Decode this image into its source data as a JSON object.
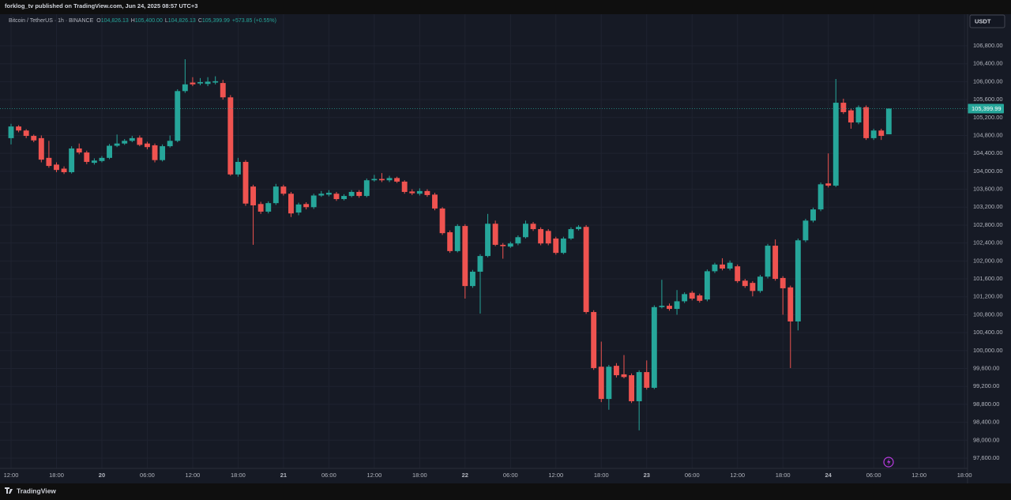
{
  "publish_note": "forklog_tv published on TradingView.com, Jun 24, 2025 08:57 UTC+3",
  "brand": "TradingView",
  "currency_button": "USDT",
  "chart_data": {
    "type": "candlestick",
    "symbol": "Bitcoin / TetherUS · 1h · BINANCE",
    "header_values": [
      {
        "key": "O",
        "value": "104,826.13"
      },
      {
        "key": "H",
        "value": "105,400.00"
      },
      {
        "key": "L",
        "value": "104,826.13"
      },
      {
        "key": "C",
        "value": "105,399.99"
      }
    ],
    "change": "+573.85 (+0.55%)",
    "up_color": "#26a69a",
    "down_color": "#ef5350",
    "grid": true,
    "last_price": {
      "value": 105399.99,
      "label": "105,399.99"
    },
    "xlim": [
      -0.94,
      126.3
    ],
    "ylim": [
      97371,
      107505
    ],
    "xticks": [
      {
        "value": 0,
        "label": "12:00"
      },
      {
        "value": 6,
        "label": "18:00"
      },
      {
        "value": 12,
        "label": "20"
      },
      {
        "value": 18,
        "label": "06:00"
      },
      {
        "value": 24,
        "label": "12:00"
      },
      {
        "value": 30,
        "label": "18:00"
      },
      {
        "value": 36,
        "label": "21"
      },
      {
        "value": 42,
        "label": "06:00"
      },
      {
        "value": 48,
        "label": "12:00"
      },
      {
        "value": 54,
        "label": "18:00"
      },
      {
        "value": 60,
        "label": "22"
      },
      {
        "value": 66,
        "label": "06:00"
      },
      {
        "value": 72,
        "label": "12:00"
      },
      {
        "value": 78,
        "label": "18:00"
      },
      {
        "value": 84,
        "label": "23"
      },
      {
        "value": 90,
        "label": "06:00"
      },
      {
        "value": 96,
        "label": "12:00"
      },
      {
        "value": 102,
        "label": "18:00"
      },
      {
        "value": 108,
        "label": "24"
      },
      {
        "value": 114,
        "label": "06:00"
      },
      {
        "value": 120,
        "label": "12:00"
      },
      {
        "value": 126,
        "label": "18:00"
      }
    ],
    "yticks": [
      {
        "value": 97600,
        "label": "97,600.00"
      },
      {
        "value": 98000,
        "label": "98,000.00"
      },
      {
        "value": 98400,
        "label": "98,400.00"
      },
      {
        "value": 98800,
        "label": "98,800.00"
      },
      {
        "value": 99200,
        "label": "99,200.00"
      },
      {
        "value": 99600,
        "label": "99,600.00"
      },
      {
        "value": 100000,
        "label": "100,000.00"
      },
      {
        "value": 100400,
        "label": "100,400.00"
      },
      {
        "value": 100800,
        "label": "100,800.00"
      },
      {
        "value": 101200,
        "label": "101,200.00"
      },
      {
        "value": 101600,
        "label": "101,600.00"
      },
      {
        "value": 102000,
        "label": "102,000.00"
      },
      {
        "value": 102400,
        "label": "102,400.00"
      },
      {
        "value": 102800,
        "label": "102,800.00"
      },
      {
        "value": 103200,
        "label": "103,200.00"
      },
      {
        "value": 103600,
        "label": "103,600.00"
      },
      {
        "value": 104000,
        "label": "104,000.00"
      },
      {
        "value": 104400,
        "label": "104,400.00"
      },
      {
        "value": 104800,
        "label": "104,800.00"
      },
      {
        "value": 105200,
        "label": "105,200.00"
      },
      {
        "value": 105600,
        "label": "105,600.00"
      },
      {
        "value": 106000,
        "label": "106,000.00"
      },
      {
        "value": 106400,
        "label": "106,400.00"
      },
      {
        "value": 106800,
        "label": "106,800.00"
      }
    ],
    "x": [
      0,
      1,
      2,
      3,
      4,
      5,
      6,
      7,
      8,
      9,
      10,
      11,
      12,
      13,
      14,
      15,
      16,
      17,
      18,
      19,
      20,
      21,
      22,
      23,
      24,
      25,
      26,
      27,
      28,
      29,
      30,
      31,
      32,
      33,
      34,
      35,
      36,
      37,
      38,
      39,
      40,
      41,
      42,
      43,
      44,
      45,
      46,
      47,
      48,
      49,
      50,
      51,
      52,
      53,
      54,
      55,
      56,
      57,
      58,
      59,
      60,
      61,
      62,
      63,
      64,
      65,
      66,
      67,
      68,
      69,
      70,
      71,
      72,
      73,
      74,
      75,
      76,
      77,
      78,
      79,
      80,
      81,
      82,
      83,
      84,
      85,
      86,
      87,
      88,
      89,
      90,
      91,
      92,
      93,
      94,
      95,
      96,
      97,
      98,
      99,
      100,
      101,
      102,
      103,
      104,
      105,
      106,
      107,
      108,
      109,
      110,
      111,
      112,
      113,
      114,
      115,
      116
    ],
    "open": [
      104740,
      105000,
      104910,
      104790,
      104740,
      104300,
      104150,
      104060,
      103980,
      104510,
      104420,
      104190,
      104230,
      104300,
      104570,
      104620,
      104680,
      104750,
      104620,
      104580,
      104250,
      104560,
      104680,
      105790,
      105980,
      105960,
      105950,
      105980,
      105970,
      105650,
      103930,
      104210,
      103660,
      103270,
      103100,
      103290,
      103660,
      103500,
      103080,
      103270,
      103200,
      103460,
      103480,
      103500,
      103380,
      103450,
      103540,
      103450,
      103800,
      103830,
      103800,
      103850,
      103770,
      103550,
      103500,
      103560,
      103480,
      103170,
      102640,
      102220,
      102780,
      101440,
      101760,
      102110,
      102830,
      102360,
      102320,
      102390,
      102530,
      102830,
      102710,
      102670,
      102500,
      102180,
      102500,
      102710,
      102760,
      100860,
      99640,
      98920,
      99660,
      99470,
      99450,
      98870,
      99520,
      99170,
      100970,
      101000,
      100930,
      101100,
      101290,
      101230,
      101140,
      101770,
      101920,
      101830,
      101880,
      101560,
      101510,
      101330,
      101650,
      102340,
      101620,
      101410,
      100650,
      102460,
      102900,
      103150,
      103730,
      103680,
      105530,
      105360,
      105090,
      105430,
      104740,
      104910,
      104826.13
    ],
    "high": [
      105060,
      105030,
      104940,
      104820,
      104800,
      104680,
      104200,
      104110,
      104560,
      104620,
      104460,
      104290,
      104340,
      104610,
      104820,
      104720,
      104790,
      104800,
      104660,
      104620,
      104600,
      104800,
      105830,
      106500,
      106100,
      106080,
      106100,
      106120,
      106040,
      105700,
      104300,
      104250,
      103700,
      103320,
      103330,
      103720,
      103700,
      103540,
      103300,
      103310,
      103500,
      103560,
      103580,
      103540,
      103490,
      103580,
      103580,
      103840,
      103920,
      103960,
      103900,
      103880,
      103800,
      103600,
      103620,
      103600,
      103520,
      103200,
      102680,
      102820,
      102820,
      101800,
      102150,
      103050,
      102900,
      102400,
      102430,
      102570,
      102900,
      102870,
      102750,
      102710,
      102540,
      102540,
      102750,
      102800,
      102800,
      100900,
      100200,
      99680,
      99720,
      99900,
      99490,
      99560,
      99780,
      101010,
      101580,
      101050,
      101350,
      101300,
      101330,
      101270,
      101810,
      101960,
      102060,
      102010,
      101920,
      101600,
      101550,
      101690,
      102380,
      102480,
      101660,
      101450,
      102500,
      102940,
      103190,
      103750,
      104400,
      106060,
      105620,
      105400,
      105470,
      105470,
      104950,
      104950,
      105400
    ],
    "low": [
      104600,
      104870,
      104740,
      104650,
      104200,
      104080,
      103980,
      103940,
      103950,
      104380,
      104160,
      104150,
      104200,
      104270,
      104540,
      104590,
      104650,
      104560,
      104490,
      104200,
      104220,
      104530,
      104650,
      105750,
      105900,
      105920,
      105900,
      105940,
      105600,
      103900,
      103880,
      103230,
      102360,
      103050,
      103060,
      103250,
      103460,
      102980,
      103020,
      103150,
      103160,
      103430,
      103440,
      103340,
      103350,
      103420,
      103410,
      103420,
      103770,
      103760,
      103760,
      103740,
      103500,
      103470,
      103460,
      103430,
      103130,
      102580,
      102180,
      102190,
      101160,
      101400,
      100825,
      102080,
      102330,
      102050,
      102290,
      102350,
      102500,
      102670,
      102350,
      102350,
      102140,
      102150,
      102470,
      102680,
      100820,
      99570,
      98850,
      98680,
      99400,
      99380,
      98830,
      98220,
      99130,
      99140,
      100940,
      100890,
      100800,
      101060,
      101120,
      101070,
      101100,
      101730,
      101790,
      101790,
      101510,
      101400,
      101210,
      101290,
      101610,
      101560,
      100800,
      99610,
      100450,
      102420,
      102860,
      103110,
      103640,
      103650,
      105280,
      104950,
      105050,
      104700,
      104700,
      104700,
      104826.13
    ],
    "close": [
      105000,
      104910,
      104790,
      104690,
      104260,
      104120,
      104030,
      103980,
      104510,
      104420,
      104210,
      104240,
      104300,
      104570,
      104620,
      104680,
      104740,
      104590,
      104540,
      104250,
      104560,
      104680,
      105790,
      105940,
      105940,
      105990,
      106000,
      106010,
      105650,
      103930,
      104210,
      103280,
      103240,
      103100,
      103290,
      103660,
      103500,
      103060,
      103260,
      103200,
      103460,
      103500,
      103520,
      103380,
      103450,
      103540,
      103450,
      103800,
      103830,
      103800,
      103850,
      103770,
      103540,
      103510,
      103560,
      103470,
      103170,
      102620,
      102220,
      102780,
      101440,
      101760,
      102110,
      102830,
      102360,
      102330,
      102390,
      102530,
      102830,
      102710,
      102390,
      102390,
      102180,
      102500,
      102710,
      102760,
      100860,
      99610,
      98920,
      99640,
      99450,
      99410,
      98870,
      99520,
      99170,
      100970,
      101000,
      100930,
      101100,
      101260,
      101160,
      101110,
      101770,
      101920,
      101830,
      101960,
      101550,
      101440,
      101330,
      101650,
      102340,
      101600,
      101390,
      100650,
      102460,
      102900,
      103150,
      103710,
      103680,
      105530,
      105320,
      105090,
      105430,
      104740,
      104910,
      104790,
      105399.99
    ]
  }
}
